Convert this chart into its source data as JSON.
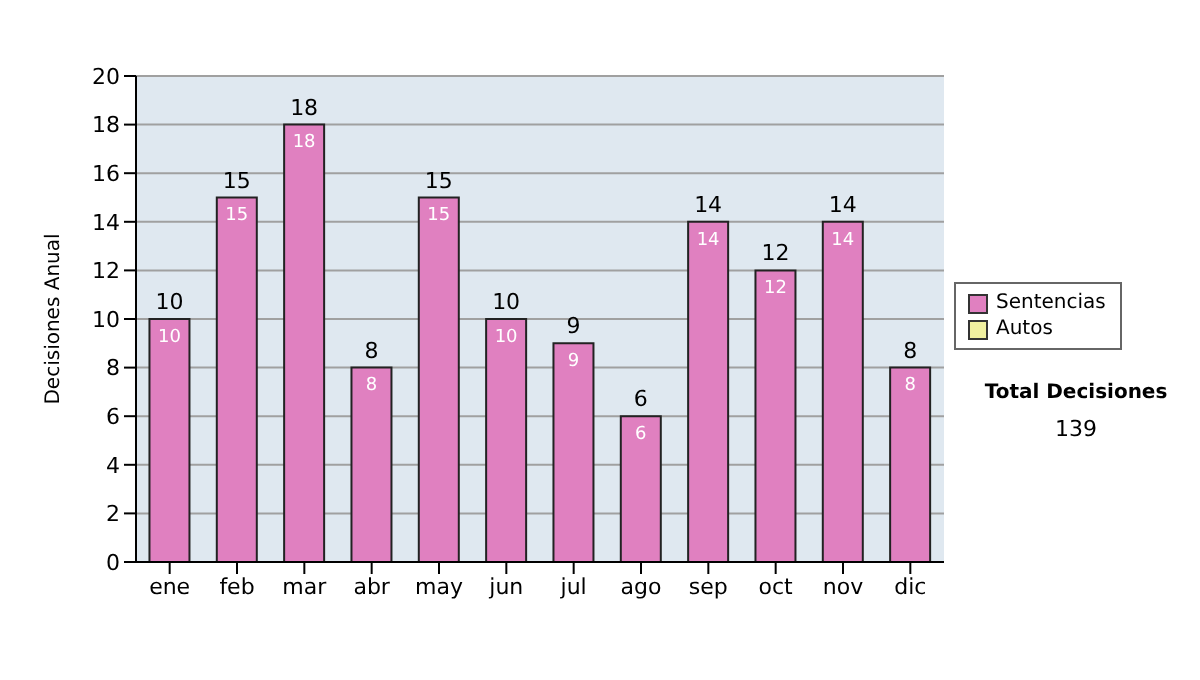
{
  "chart_data": {
    "type": "bar",
    "ylabel": "Decisiones Anual",
    "categories": [
      "ene",
      "feb",
      "mar",
      "abr",
      "may",
      "jun",
      "jul",
      "ago",
      "sep",
      "oct",
      "nov",
      "dic"
    ],
    "series": [
      {
        "name": "Sentencias",
        "color": "#e080c0",
        "values": [
          10,
          15,
          18,
          8,
          15,
          10,
          9,
          6,
          14,
          12,
          14,
          8
        ]
      },
      {
        "name": "Autos",
        "color": "#f0f0a0",
        "values": [
          null,
          null,
          null,
          null,
          null,
          null,
          null,
          null,
          null,
          null,
          null,
          null
        ]
      }
    ],
    "stacked": true,
    "data_labels": true,
    "totals": [
      "10",
      "15",
      "18",
      "8",
      "15",
      "10",
      "9",
      "6",
      "14",
      "12",
      "14",
      "8"
    ],
    "ylim": [
      0,
      20
    ],
    "yticks": [
      0,
      2,
      4,
      6,
      8,
      10,
      12,
      14,
      16,
      18,
      20
    ],
    "grid": "y",
    "legend": "right",
    "annotations": [
      "Total Decisiones",
      "139"
    ]
  }
}
